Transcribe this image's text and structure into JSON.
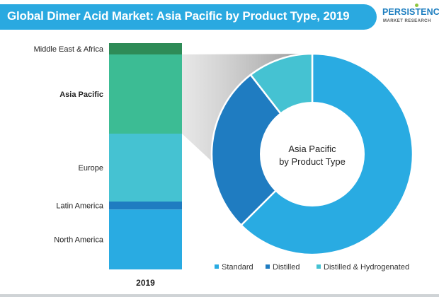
{
  "title": "Global Dimer Acid Market: Asia Pacific by Product Type, 2019",
  "logo": {
    "main": "PERSISTENCE",
    "sub": "MARKET RESEARCH"
  },
  "chart_data": [
    {
      "type": "bar",
      "stacked": true,
      "categories": [
        "2019"
      ],
      "xlabel": "",
      "ylabel": "",
      "ylim": [
        0,
        100
      ],
      "highlight": "Asia Pacific",
      "series": [
        {
          "name": "North America",
          "values": [
            26.5
          ],
          "color": "#29abe2"
        },
        {
          "name": "Latin America",
          "values": [
            3.5
          ],
          "color": "#1f7cc1"
        },
        {
          "name": "Europe",
          "values": [
            30
          ],
          "color": "#45c2d2"
        },
        {
          "name": "Asia Pacific",
          "values": [
            35
          ],
          "color": "#3cbc94"
        },
        {
          "name": "Middle East & Africa",
          "values": [
            5
          ],
          "color": "#2e8b57"
        }
      ]
    },
    {
      "type": "pie",
      "donut": true,
      "title": "",
      "center_label": [
        "Asia Pacific",
        "by Product Type"
      ],
      "legend_position": "bottom",
      "slices": [
        {
          "name": "Standard",
          "value": 62.5,
          "color": "#29abe2"
        },
        {
          "name": "Distilled",
          "value": 27,
          "color": "#1f7cc1"
        },
        {
          "name": "Distilled & Hydrogenated",
          "value": 10.5,
          "color": "#45c2d2"
        }
      ]
    }
  ]
}
